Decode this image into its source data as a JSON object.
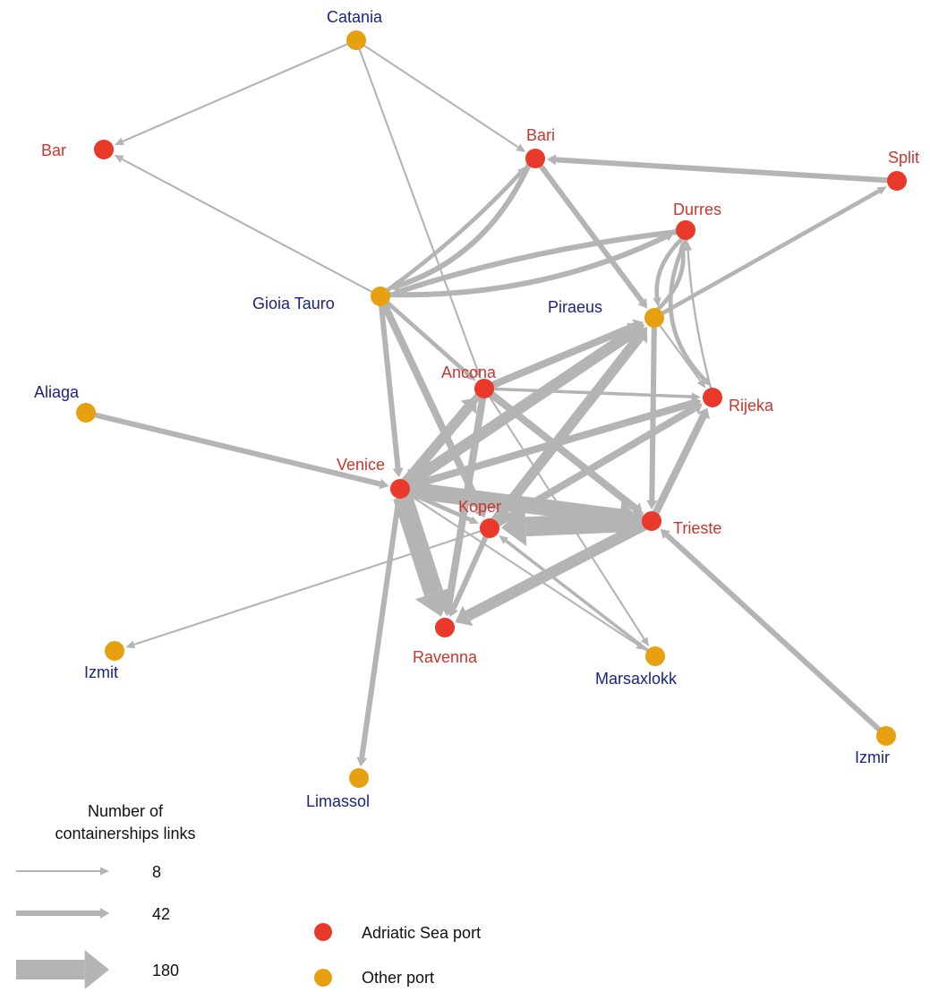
{
  "colors": {
    "adriatic": "#e8392a",
    "other": "#e6a010",
    "adriatic_label": "#c8372e",
    "other_label": "#1a2386",
    "edge": "#b4b4b4"
  },
  "nodes": [
    {
      "id": "catania",
      "name": "Catania",
      "type": "other"
    },
    {
      "id": "bar",
      "name": "Bar",
      "type": "adriatic"
    },
    {
      "id": "bari",
      "name": "Bari",
      "type": "adriatic"
    },
    {
      "id": "split",
      "name": "Split",
      "type": "adriatic"
    },
    {
      "id": "durres",
      "name": "Durres",
      "type": "adriatic"
    },
    {
      "id": "gioia",
      "name": "Gioia Tauro",
      "type": "other"
    },
    {
      "id": "piraeus",
      "name": "Piraeus",
      "type": "other"
    },
    {
      "id": "aliaga",
      "name": "Aliaga",
      "type": "other"
    },
    {
      "id": "ancona",
      "name": "Ancona",
      "type": "adriatic"
    },
    {
      "id": "rijeka",
      "name": "Rijeka",
      "type": "adriatic"
    },
    {
      "id": "venice",
      "name": "Venice",
      "type": "adriatic"
    },
    {
      "id": "koper",
      "name": "Koper",
      "type": "adriatic"
    },
    {
      "id": "trieste",
      "name": "Trieste",
      "type": "adriatic"
    },
    {
      "id": "ravenna",
      "name": "Ravenna",
      "type": "adriatic"
    },
    {
      "id": "izmit",
      "name": "Izmit",
      "type": "other"
    },
    {
      "id": "marsaxlokk",
      "name": "Marsaxlokk",
      "type": "other"
    },
    {
      "id": "izmir",
      "name": "Izmir",
      "type": "other"
    },
    {
      "id": "limassol",
      "name": "Limassol",
      "type": "other"
    }
  ],
  "edges": [
    {
      "from": "catania",
      "to": "bar",
      "weight": 8
    },
    {
      "from": "catania",
      "to": "bari",
      "weight": 8
    },
    {
      "from": "catania",
      "to": "ancona",
      "weight": 8
    },
    {
      "from": "gioia",
      "to": "bar",
      "weight": 8
    },
    {
      "from": "split",
      "to": "bari",
      "weight": 42
    },
    {
      "from": "piraeus",
      "to": "split",
      "weight": 30
    },
    {
      "from": "bari",
      "to": "gioia",
      "weight": 42
    },
    {
      "from": "gioia",
      "to": "bari",
      "weight": 30
    },
    {
      "from": "gioia",
      "to": "durres",
      "weight": 42
    },
    {
      "from": "durres",
      "to": "gioia",
      "weight": 42
    },
    {
      "from": "bari",
      "to": "piraeus",
      "weight": 42
    },
    {
      "from": "piraeus",
      "to": "durres",
      "weight": 30
    },
    {
      "from": "durres",
      "to": "piraeus",
      "weight": 30
    },
    {
      "from": "durres",
      "to": "rijeka",
      "weight": 30
    },
    {
      "from": "rijeka",
      "to": "durres",
      "weight": 10
    },
    {
      "from": "piraeus",
      "to": "rijeka",
      "weight": 8
    },
    {
      "from": "gioia",
      "to": "ancona",
      "weight": 30
    },
    {
      "from": "gioia",
      "to": "venice",
      "weight": 42
    },
    {
      "from": "gioia",
      "to": "koper",
      "weight": 60
    },
    {
      "from": "aliaga",
      "to": "venice",
      "weight": 42
    },
    {
      "from": "ancona",
      "to": "piraeus",
      "weight": 60
    },
    {
      "from": "ancona",
      "to": "rijeka",
      "weight": 20
    },
    {
      "from": "ancona",
      "to": "trieste",
      "weight": 60
    },
    {
      "from": "ancona",
      "to": "ravenna",
      "weight": 60
    },
    {
      "from": "ancona",
      "to": "venice",
      "weight": 60
    },
    {
      "from": "ancona",
      "to": "marsaxlokk",
      "weight": 8
    },
    {
      "from": "venice",
      "to": "piraeus",
      "weight": 100
    },
    {
      "from": "venice",
      "to": "rijeka",
      "weight": 60
    },
    {
      "from": "venice",
      "to": "ancona",
      "weight": 90
    },
    {
      "from": "venice",
      "to": "trieste",
      "weight": 150
    },
    {
      "from": "venice",
      "to": "ravenna",
      "weight": 180
    },
    {
      "from": "venice",
      "to": "limassol",
      "weight": 42
    },
    {
      "from": "venice",
      "to": "koper",
      "weight": 30
    },
    {
      "from": "venice",
      "to": "marsaxlokk",
      "weight": 8
    },
    {
      "from": "koper",
      "to": "piraeus",
      "weight": 90
    },
    {
      "from": "koper",
      "to": "rijeka",
      "weight": 60
    },
    {
      "from": "koper",
      "to": "ravenna",
      "weight": 42
    },
    {
      "from": "koper",
      "to": "izmit",
      "weight": 8
    },
    {
      "from": "trieste",
      "to": "koper",
      "weight": 180
    },
    {
      "from": "trieste",
      "to": "ravenna",
      "weight": 100
    },
    {
      "from": "trieste",
      "to": "rijeka",
      "weight": 60
    },
    {
      "from": "piraeus",
      "to": "trieste",
      "weight": 42
    },
    {
      "from": "marsaxlokk",
      "to": "koper",
      "weight": 20
    },
    {
      "from": "izmir",
      "to": "trieste",
      "weight": 42
    }
  ],
  "legend": {
    "weights_title_line1": "Number of",
    "weights_title_line2": "containerships links",
    "weights": [
      {
        "value": 8,
        "label": "8"
      },
      {
        "value": 42,
        "label": "42"
      },
      {
        "value": 180,
        "label": "180"
      }
    ],
    "adriatic_label": "Adriatic Sea port",
    "other_label": "Other port"
  }
}
